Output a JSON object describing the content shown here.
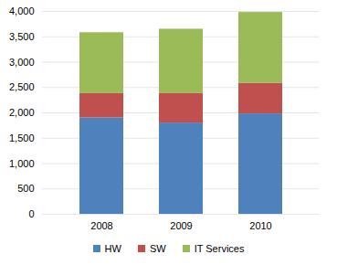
{
  "chart_data": {
    "type": "bar",
    "stacked": true,
    "categories": [
      "2008",
      "2009",
      "2010"
    ],
    "series": [
      {
        "name": "HW",
        "color": "#4f81bd",
        "values": [
          1900,
          1800,
          1980
        ]
      },
      {
        "name": "SW",
        "color": "#c0504d",
        "values": [
          480,
          580,
          600
        ]
      },
      {
        "name": "IT Services",
        "color": "#9bbb59",
        "values": [
          1200,
          1270,
          1400
        ]
      }
    ],
    "ylim": [
      0,
      4000
    ],
    "yticks": [
      0,
      500,
      {
        "value": 1000,
        "label": "1,000"
      },
      {
        "value": 1500,
        "label": "1,500"
      },
      {
        "value": 2000,
        "label": "2,000"
      },
      {
        "value": 2500,
        "label": "2,500"
      },
      {
        "value": 3000,
        "label": "3,000"
      },
      {
        "value": 3500,
        "label": "3,500"
      },
      {
        "value": 4000,
        "label": "4,000"
      }
    ],
    "grid": true,
    "legend": "bottom"
  }
}
